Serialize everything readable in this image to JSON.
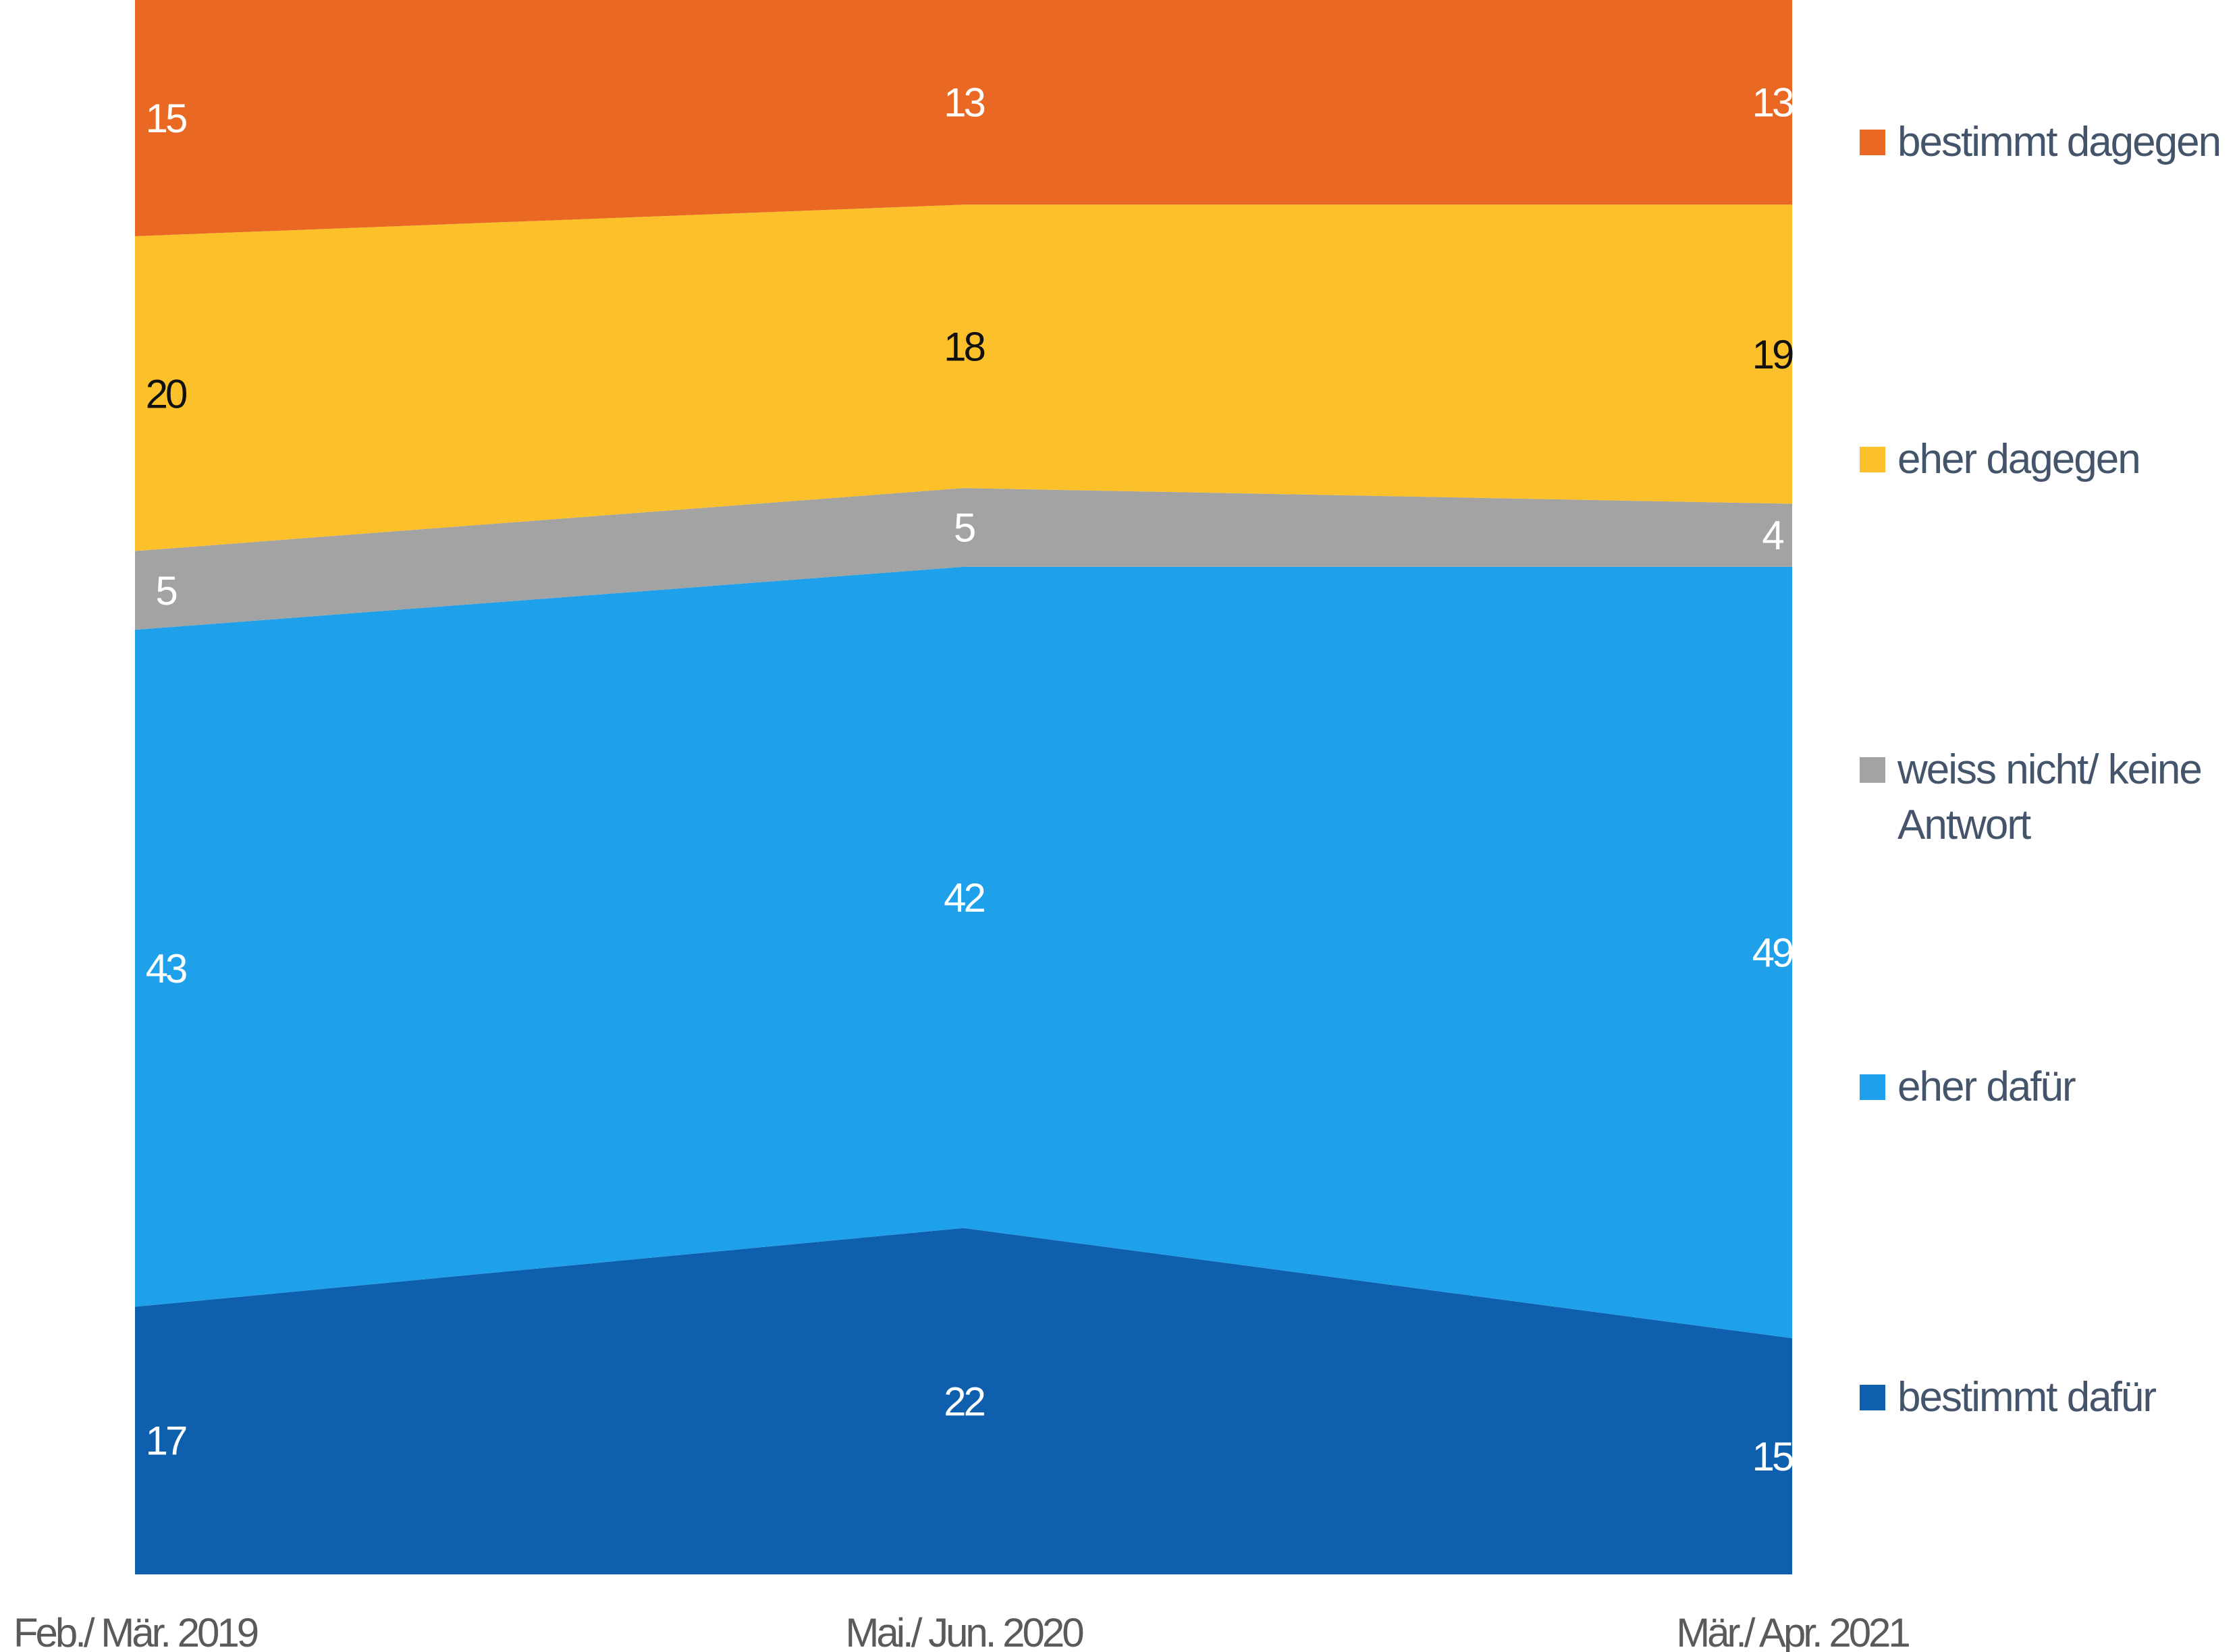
{
  "chart_data": {
    "type": "area",
    "stacked": true,
    "categories": [
      "Feb./ Mär. 2019",
      "Mai./ Jun. 2020",
      "Mär./ Apr. 2021"
    ],
    "series": [
      {
        "name": "bestimmt dafür",
        "values": [
          17,
          22,
          15
        ],
        "color": "#0e60ae",
        "label_color": "#ffffff"
      },
      {
        "name": "eher dafür",
        "values": [
          43,
          42,
          49
        ],
        "color": "#1ea0ea",
        "label_color": "#ffffff"
      },
      {
        "name": "weiss nicht/ keine Antwort",
        "values": [
          5,
          5,
          4
        ],
        "color": "#a3a3a3",
        "label_color": "#ffffff"
      },
      {
        "name": "eher dagegen",
        "values": [
          20,
          18,
          19
        ],
        "color": "#fbc02a",
        "label_color": "#111111"
      },
      {
        "name": "bestimmt dagegen",
        "values": [
          15,
          13,
          13
        ],
        "color": "#e86824",
        "label_color": "#ffffff"
      }
    ],
    "ylim": [
      0,
      100
    ],
    "grid": false,
    "legend_position": "right"
  }
}
